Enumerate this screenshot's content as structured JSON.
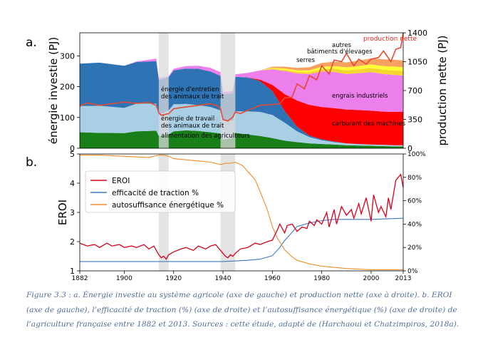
{
  "caption": "Figure 3.3 : a. Énergie investie au système agricole (axe de gauche) et production nette (axe à droite). b. EROI (axe de gauche), l’efficacité de traction (%) (axe de droite) et l’autosuffisance énergétique (%) (axe de droite) de l’agriculture française entre 1882 et 2013. Sources : cette étude, adapté de (Harchaoui et Chatzimpiros, 2018a).",
  "chart_data": [
    {
      "type": "area",
      "panel_label": "a.",
      "ylabel": "énergie investie (PJ)",
      "y2label": "production nette (PJ)",
      "xlim": [
        1882,
        2013
      ],
      "ylim": [
        0,
        375
      ],
      "y2lim": [
        0,
        1400
      ],
      "yticks": [
        0,
        100,
        200,
        300
      ],
      "y2ticks": [
        0,
        350,
        700,
        1050,
        1400
      ],
      "shaded_periods": [
        [
          1914,
          1918
        ],
        [
          1939,
          1945
        ]
      ],
      "x": [
        1882,
        1890,
        1900,
        1905,
        1913,
        1914,
        1918,
        1920,
        1925,
        1930,
        1935,
        1939,
        1940,
        1944,
        1945,
        1950,
        1955,
        1960,
        1965,
        1970,
        1975,
        1980,
        1985,
        1990,
        1995,
        2000,
        2005,
        2010,
        2013
      ],
      "series": [
        {
          "name": "alimentation des agriculteurs",
          "color": "#198019",
          "values": [
            52,
            50,
            49,
            55,
            57,
            40,
            45,
            55,
            58,
            56,
            52,
            48,
            28,
            35,
            50,
            45,
            40,
            33,
            25,
            20,
            16,
            14,
            12,
            10,
            9,
            8,
            7,
            6,
            6
          ]
        },
        {
          "name": "énergie de travail des animaux de trait",
          "color": "#a9cfe5",
          "values": [
            85,
            88,
            82,
            90,
            88,
            68,
            78,
            88,
            86,
            84,
            82,
            75,
            62,
            55,
            70,
            75,
            78,
            75,
            58,
            35,
            20,
            12,
            8,
            6,
            5,
            4,
            4,
            4,
            4
          ]
        },
        {
          "name": "énergie d'entretien des animaux de trait",
          "color": "#2e74b5",
          "values": [
            138,
            140,
            137,
            135,
            138,
            115,
            108,
            110,
            115,
            118,
            115,
            112,
            85,
            88,
            112,
            110,
            100,
            78,
            38,
            15,
            5,
            3,
            2,
            0,
            0,
            0,
            0,
            0,
            0
          ]
        },
        {
          "name": "carburant des machines",
          "color": "#ff0000",
          "values": [
            0,
            0,
            0,
            0,
            0,
            0,
            0,
            0,
            0,
            0,
            0,
            0,
            0,
            0,
            0,
            0,
            5,
            20,
            55,
            85,
            100,
            105,
            108,
            110,
            110,
            110,
            108,
            108,
            108
          ]
        },
        {
          "name": "engrais industriels",
          "color": "#ec7fec",
          "values": [
            0,
            0,
            0,
            2,
            8,
            5,
            3,
            5,
            8,
            10,
            12,
            12,
            8,
            8,
            8,
            15,
            30,
            50,
            75,
            88,
            100,
            115,
            118,
            115,
            120,
            125,
            122,
            120,
            118
          ]
        },
        {
          "name": "serres",
          "color": "#f5d62e",
          "values": [
            0,
            0,
            0,
            0,
            0,
            0,
            0,
            0,
            0,
            0,
            0,
            0,
            0,
            0,
            0,
            0,
            0,
            2,
            4,
            5,
            6,
            8,
            10,
            12,
            13,
            14,
            14,
            15,
            15
          ]
        },
        {
          "name": "bâtiments d'élevages",
          "color": "#ffff33",
          "values": [
            0,
            0,
            0,
            0,
            0,
            0,
            0,
            0,
            0,
            0,
            0,
            0,
            0,
            0,
            0,
            0,
            0,
            3,
            4,
            5,
            6,
            8,
            9,
            10,
            10,
            11,
            12,
            12,
            12
          ]
        },
        {
          "name": "autres",
          "color": "#f6a15f",
          "values": [
            0,
            0,
            0,
            0,
            0,
            0,
            0,
            0,
            0,
            0,
            0,
            0,
            0,
            0,
            0,
            0,
            0,
            4,
            6,
            8,
            10,
            12,
            14,
            16,
            18,
            20,
            22,
            22,
            22
          ]
        }
      ],
      "net_production": {
        "name": "production nette",
        "color": "#e34a33",
        "x": [
          1882,
          1885,
          1890,
          1895,
          1900,
          1905,
          1910,
          1913,
          1914,
          1915,
          1918,
          1920,
          1925,
          1930,
          1935,
          1938,
          1939,
          1940,
          1942,
          1944,
          1945,
          1947,
          1950,
          1955,
          1960,
          1963,
          1965,
          1968,
          1970,
          1973,
          1975,
          1978,
          1980,
          1983,
          1985,
          1988,
          1990,
          1993,
          1995,
          1998,
          2000,
          2003,
          2005,
          2008,
          2010,
          2012,
          2013
        ],
        "values": [
          510,
          550,
          520,
          540,
          560,
          545,
          555,
          520,
          430,
          400,
          420,
          480,
          500,
          520,
          540,
          510,
          480,
          350,
          330,
          380,
          440,
          420,
          460,
          520,
          530,
          540,
          610,
          620,
          780,
          720,
          880,
          830,
          1000,
          900,
          1070,
          1050,
          1150,
          1000,
          1080,
          1020,
          1080,
          1100,
          1180,
          1050,
          1200,
          1220,
          1400
        ]
      },
      "annotations": [
        "alimentation des agriculteurs",
        "énergie de travail des animaux de trait",
        "énergie d'entretien des animaux de trait",
        "carburant des machines",
        "engrais industriels",
        "serres",
        "bâtiments d'élevages",
        "autres",
        "production nette"
      ]
    },
    {
      "type": "line",
      "panel_label": "b.",
      "ylabel": "EROI",
      "xlim": [
        1882,
        2013
      ],
      "ylim": [
        1,
        5
      ],
      "y2lim": [
        0,
        100
      ],
      "yticks": [
        1,
        2,
        3,
        4,
        5
      ],
      "y2ticks": [
        0,
        20,
        40,
        60,
        80,
        100
      ],
      "y2tick_labels": [
        "0%",
        "20%",
        "40%",
        "60%",
        "80%",
        "100%"
      ],
      "xticks": [
        1882,
        1900,
        1920,
        1940,
        1960,
        1980,
        2000,
        2013
      ],
      "shaded_periods": [
        [
          1914,
          1918
        ],
        [
          1939,
          1945
        ]
      ],
      "legend_position": "upper-left",
      "series": [
        {
          "name": "EROI",
          "axis": "left",
          "color": "#d9001b",
          "x": [
            1882,
            1885,
            1888,
            1890,
            1893,
            1895,
            1898,
            1900,
            1903,
            1905,
            1908,
            1910,
            1912,
            1913,
            1914,
            1915,
            1916,
            1917,
            1918,
            1920,
            1923,
            1925,
            1928,
            1930,
            1933,
            1935,
            1937,
            1938,
            1939,
            1940,
            1941,
            1942,
            1943,
            1944,
            1945,
            1947,
            1950,
            1953,
            1955,
            1958,
            1960,
            1962,
            1963,
            1965,
            1966,
            1968,
            1970,
            1972,
            1974,
            1975,
            1977,
            1978,
            1980,
            1982,
            1983,
            1985,
            1986,
            1988,
            1990,
            1992,
            1993,
            1995,
            1996,
            1998,
            2000,
            2001,
            2003,
            2004,
            2006,
            2007,
            2008,
            2010,
            2012,
            2013
          ],
          "values": [
            1.95,
            1.85,
            1.9,
            1.8,
            1.95,
            1.85,
            1.9,
            1.8,
            1.85,
            1.8,
            1.9,
            1.75,
            1.85,
            1.7,
            1.55,
            1.45,
            1.5,
            1.4,
            1.55,
            1.65,
            1.75,
            1.8,
            1.7,
            1.85,
            1.75,
            1.85,
            1.9,
            1.8,
            1.7,
            1.6,
            1.5,
            1.45,
            1.55,
            1.5,
            1.6,
            1.75,
            1.8,
            1.95,
            1.9,
            2.0,
            2.05,
            2.4,
            2.6,
            2.3,
            2.55,
            2.6,
            2.35,
            2.5,
            2.45,
            2.7,
            2.55,
            2.75,
            2.6,
            3.0,
            2.5,
            3.1,
            2.6,
            3.2,
            2.9,
            3.1,
            2.8,
            3.3,
            2.95,
            3.5,
            2.7,
            3.6,
            3.0,
            3.2,
            2.85,
            3.5,
            3.1,
            4.1,
            4.3,
            3.85
          ]
        },
        {
          "name": "efficacité de traction %",
          "axis": "right",
          "color": "#3b7bbf",
          "x": [
            1882,
            1900,
            1920,
            1940,
            1950,
            1955,
            1960,
            1963,
            1965,
            1968,
            1970,
            1975,
            1980,
            1985,
            1990,
            2000,
            2013
          ],
          "values": [
            8,
            8,
            8,
            8,
            9,
            10,
            13,
            20,
            26,
            33,
            38,
            41,
            43,
            44,
            44,
            44,
            45
          ]
        },
        {
          "name": "autosuffisance énergétique %",
          "axis": "right",
          "color": "#f28c28",
          "x": [
            1882,
            1890,
            1900,
            1910,
            1914,
            1916,
            1918,
            1920,
            1925,
            1930,
            1935,
            1939,
            1941,
            1943,
            1945,
            1948,
            1950,
            1953,
            1955,
            1958,
            1960,
            1962,
            1965,
            1968,
            1970,
            1975,
            1980,
            1985,
            1990,
            2000,
            2013
          ],
          "values": [
            99,
            99,
            98,
            97,
            99,
            99,
            98,
            96,
            95,
            94,
            93,
            91,
            92,
            92,
            93,
            90,
            85,
            78,
            68,
            52,
            38,
            28,
            18,
            12,
            9,
            6,
            4,
            3,
            2,
            1,
            1
          ]
        }
      ]
    }
  ]
}
